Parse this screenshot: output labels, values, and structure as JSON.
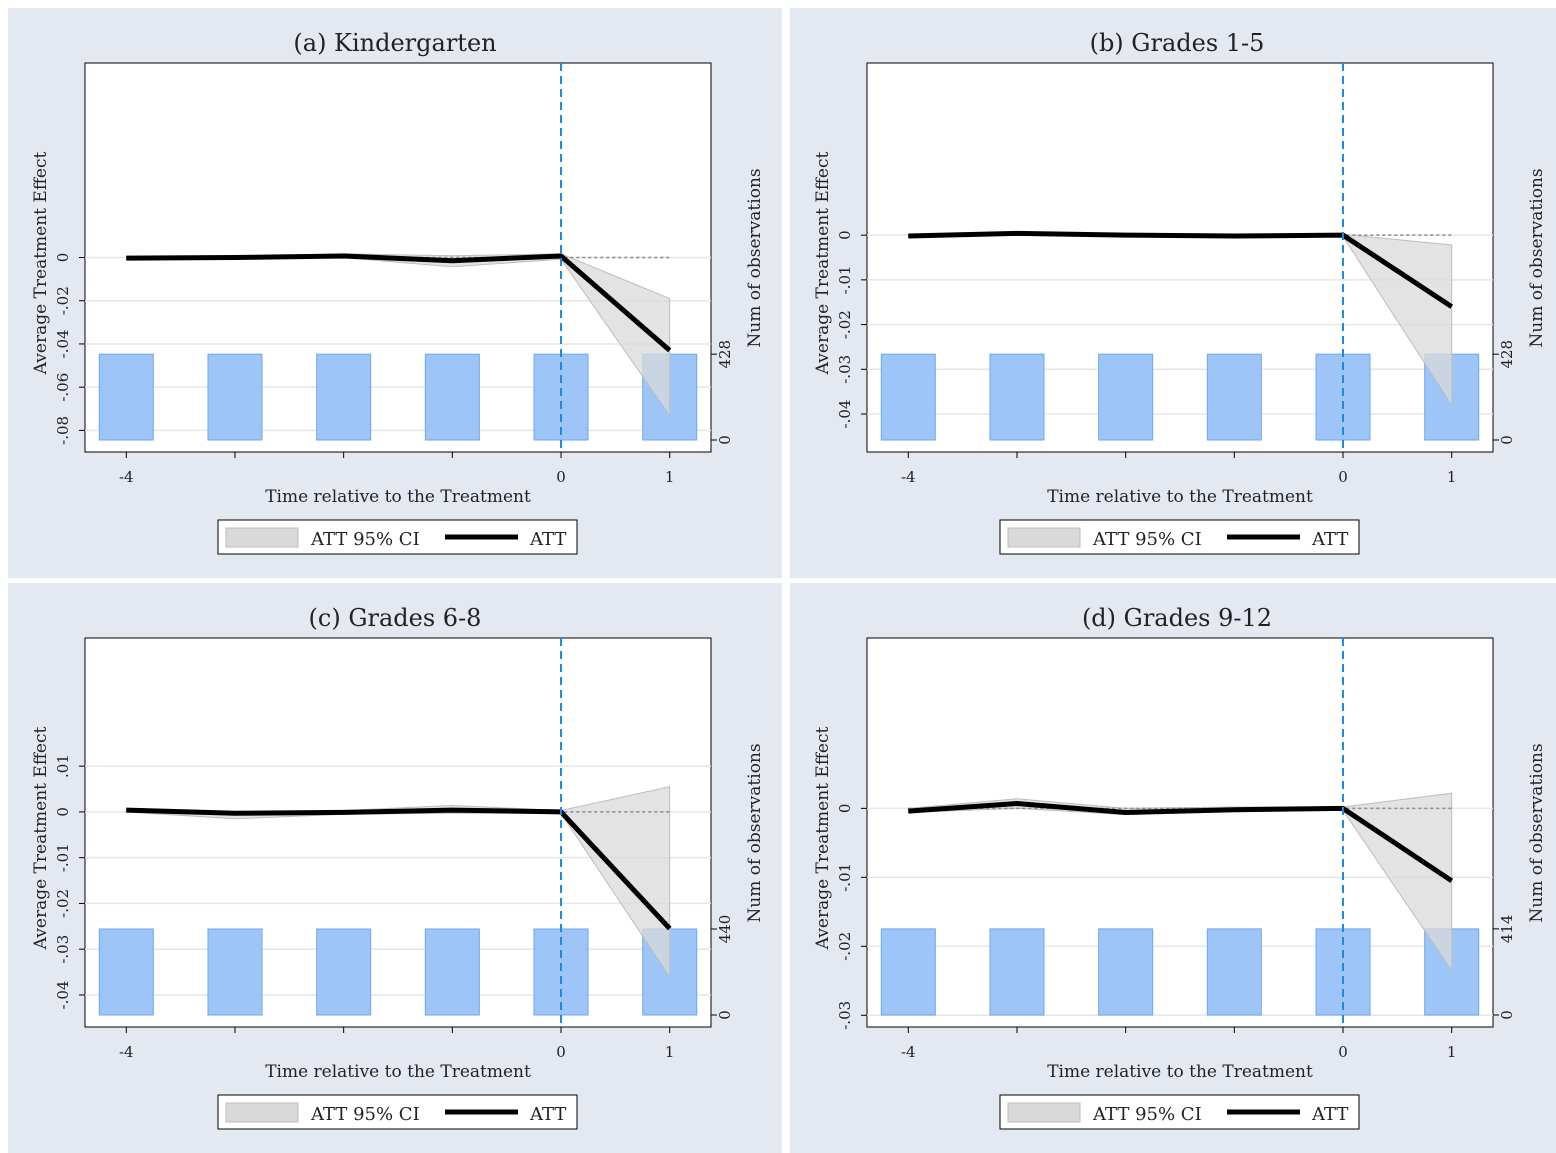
{
  "chart_data": [
    {
      "type": "line",
      "title": "(a) Kindergarten",
      "xlabel": "Time relative to the Treatment",
      "ylabel": "Average Treatment Effect",
      "ylabel2": "Num of observations",
      "x": [
        -4,
        -3,
        -2,
        -1,
        0,
        1
      ],
      "xticks": [
        "-4",
        "0",
        "1"
      ],
      "ylim": [
        -0.09,
        0.09
      ],
      "yticks": [
        0,
        -0.02,
        -0.04,
        -0.06,
        -0.08
      ],
      "yticklabels": [
        "0",
        "-.02",
        "-.04",
        "-.06",
        "-.08"
      ],
      "att": [
        -0.0003,
        0.0,
        0.0007,
        -0.0015,
        0.0007,
        -0.043
      ],
      "ci_lower": [
        -0.0006,
        -0.0004,
        -0.0001,
        -0.0043,
        -0.0008,
        -0.073
      ],
      "ci_upper": [
        0.0006,
        0.0004,
        0.0017,
        0.0008,
        0.0017,
        -0.019
      ],
      "observations": [
        428,
        428,
        428,
        428,
        428,
        428
      ],
      "obs_ylim": [
        0,
        1940
      ],
      "obs_ticks": [
        "0",
        "428"
      ],
      "treatment_x": 0,
      "legend": [
        "ATT 95% CI",
        "ATT"
      ]
    },
    {
      "type": "line",
      "title": "(b) Grades 1-5",
      "xlabel": "Time relative to the Treatment",
      "ylabel": "Average Treatment Effect",
      "ylabel2": "Num of observations",
      "x": [
        -4,
        -3,
        -2,
        -1,
        0,
        1
      ],
      "xticks": [
        "-4",
        "0",
        "1"
      ],
      "ylim": [
        -0.0485,
        0.0385
      ],
      "yticks": [
        0,
        -0.01,
        -0.02,
        -0.03,
        -0.04
      ],
      "yticklabels": [
        "0",
        "-.01",
        "-.02",
        "-.03",
        "-.04"
      ],
      "att": [
        -0.0002,
        0.0004,
        0.0,
        -0.0002,
        0.0,
        -0.016
      ],
      "ci_lower": [
        -0.0004,
        0.0,
        -0.0003,
        -0.0004,
        -0.0003,
        -0.038
      ],
      "ci_upper": [
        0.0001,
        0.0007,
        0.0002,
        0.0002,
        0.0002,
        -0.0022
      ],
      "observations": [
        428,
        428,
        428,
        428,
        428,
        428
      ],
      "obs_ylim": [
        0,
        1940
      ],
      "obs_ticks": [
        "0",
        "428"
      ],
      "treatment_x": 0,
      "legend": [
        "ATT 95% CI",
        "ATT"
      ]
    },
    {
      "type": "line",
      "title": "(c) Grades 6-8",
      "xlabel": "Time relative to the Treatment",
      "ylabel": "Average Treatment Effect",
      "ylabel2": "Num of observations",
      "x": [
        -4,
        -3,
        -2,
        -1,
        0,
        1
      ],
      "xticks": [
        "-4",
        "0",
        "1"
      ],
      "ylim": [
        -0.047,
        0.038
      ],
      "yticks": [
        0.01,
        0,
        -0.01,
        -0.02,
        -0.03,
        -0.04
      ],
      "yticklabels": [
        ".01",
        "0",
        "-.01",
        "-.02",
        "-.03",
        "-.04"
      ],
      "att": [
        0.0004,
        -0.0003,
        -0.0001,
        0.0004,
        0.0,
        -0.0255
      ],
      "ci_lower": [
        0.0,
        -0.0015,
        -0.0005,
        -0.0003,
        -0.0003,
        -0.036
      ],
      "ci_upper": [
        0.0006,
        0.0,
        0.0003,
        0.0014,
        0.0003,
        0.0055
      ],
      "observations": [
        440,
        440,
        440,
        440,
        440,
        440
      ],
      "obs_ylim": [
        0,
        1990
      ],
      "obs_ticks": [
        "0",
        "440"
      ],
      "treatment_x": 0,
      "legend": [
        "ATT 95% CI",
        "ATT"
      ]
    },
    {
      "type": "line",
      "title": "(d) Grades 9-12",
      "xlabel": "Time relative to the Treatment",
      "ylabel": "Average Treatment Effect",
      "ylabel2": "Num of observations",
      "x": [
        -4,
        -3,
        -2,
        -1,
        0,
        1
      ],
      "xticks": [
        "-4",
        "0",
        "1"
      ],
      "ylim": [
        -0.0317,
        0.0247
      ],
      "yticks": [
        0,
        -0.01,
        -0.02,
        -0.03
      ],
      "yticklabels": [
        "0",
        "-.01",
        "-.02",
        "-.03"
      ],
      "att": [
        -0.0004,
        0.0007,
        -0.0006,
        -0.0002,
        0.0,
        -0.0105
      ],
      "ci_lower": [
        -0.0006,
        0.0,
        -0.0009,
        -0.0005,
        -0.0003,
        -0.0235
      ],
      "ci_upper": [
        0.0,
        0.0014,
        0.0,
        0.0002,
        0.0002,
        0.0022
      ],
      "observations": [
        414,
        414,
        414,
        414,
        414,
        414
      ],
      "obs_ylim": [
        0,
        1870
      ],
      "obs_ticks": [
        "0",
        "414"
      ],
      "treatment_x": 0,
      "legend": [
        "ATT 95% CI",
        "ATT"
      ]
    }
  ],
  "colors": {
    "panel_bg": "#e4e8f1",
    "plot_bg": "#ffffff",
    "bar_fill": "#9ec5f7",
    "bar_stroke": "#6ea6ee",
    "ci_fill": "#d9d9d9",
    "ci_stroke": "#bdbdbd",
    "att_line": "#000000",
    "treatment_line": "#1e88e5",
    "grid": "#e6e6e6",
    "zero_line": "#8a8a8a"
  }
}
